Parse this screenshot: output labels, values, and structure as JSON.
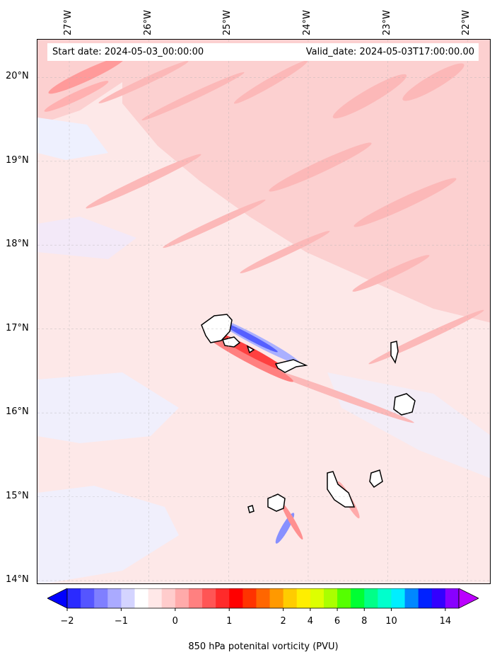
{
  "info": {
    "start_date": "Start date: 2024-05-03_00:00:00",
    "valid_date": "Valid_date: 2024-05-03T17:00:00.00"
  },
  "map": {
    "lon_range": [
      -27.4,
      -21.7
    ],
    "lat_range": [
      13.95,
      20.45
    ],
    "lon_ticks": [
      "27°W",
      "26°W",
      "25°W",
      "24°W",
      "23°W",
      "22°W"
    ],
    "lat_ticks": [
      "20°N",
      "19°N",
      "18°N",
      "17°N",
      "16°N",
      "15°N",
      "14°N"
    ],
    "gridlines": true
  },
  "colorbar": {
    "label": "850 hPa potenital vorticity (PVU)",
    "tick_labels": [
      "−2",
      "−1",
      "0",
      "1",
      "2",
      "4",
      "6",
      "8",
      "10",
      "14"
    ],
    "colors": [
      "#0000ff",
      "#2a2aff",
      "#5555ff",
      "#7f7fff",
      "#aaaaff",
      "#d4d4ff",
      "#ffffff",
      "#ffe8e8",
      "#ffcccc",
      "#ffaaaa",
      "#ff8080",
      "#ff5555",
      "#ff2a2a",
      "#ff0000",
      "#ff3300",
      "#ff6600",
      "#ff9900",
      "#ffcc00",
      "#ffee00",
      "#ddff00",
      "#aaff00",
      "#55ff00",
      "#00ff33",
      "#00ff88",
      "#00ffcc",
      "#00eeff",
      "#0088ff",
      "#0022ff",
      "#3300ff",
      "#8800ff",
      "#bb00ff"
    ]
  }
}
